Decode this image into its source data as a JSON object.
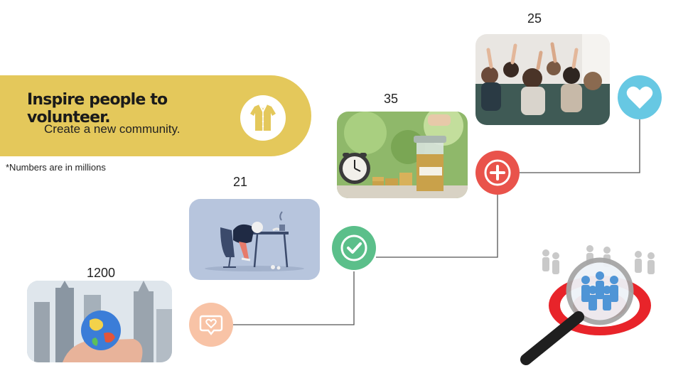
{
  "banner": {
    "title": "Inspire people to volunteer.",
    "subtitle": "Create a new community."
  },
  "note": "*Numbers are in millions",
  "steps": [
    {
      "value": "1200",
      "image": "globe-in-hand-photo",
      "icon": "speech-heart-icon",
      "icon_color": "#F8C3A6"
    },
    {
      "value": "21",
      "image": "tired-worker-illustration",
      "icon": "checkmark-icon",
      "icon_color": "#5BBF8A"
    },
    {
      "value": "35",
      "image": "retirement-savings-photo",
      "icon": "plus-icon",
      "icon_color": "#E9534B"
    },
    {
      "value": "25",
      "image": "raised-hands-audience-photo",
      "icon": "heart-icon",
      "icon_color": "#67C8E3"
    }
  ],
  "colors": {
    "banner": "#E4C85B",
    "line": "#555555"
  }
}
